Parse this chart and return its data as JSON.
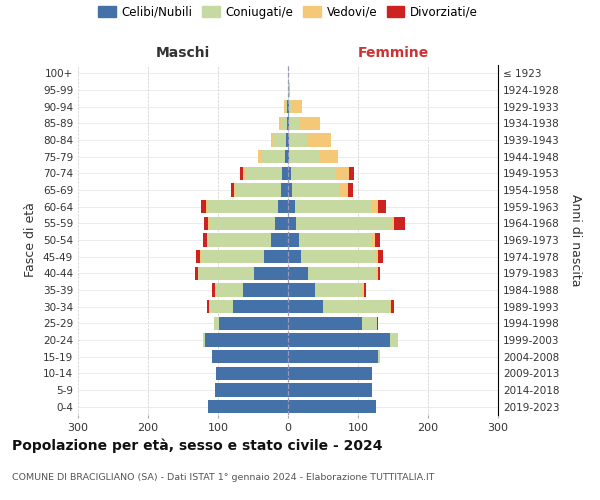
{
  "age_groups": [
    "0-4",
    "5-9",
    "10-14",
    "15-19",
    "20-24",
    "25-29",
    "30-34",
    "35-39",
    "40-44",
    "45-49",
    "50-54",
    "55-59",
    "60-64",
    "65-69",
    "70-74",
    "75-79",
    "80-84",
    "85-89",
    "90-94",
    "95-99",
    "100+"
  ],
  "birth_years": [
    "2019-2023",
    "2014-2018",
    "2009-2013",
    "2004-2008",
    "1999-2003",
    "1994-1998",
    "1989-1993",
    "1984-1988",
    "1979-1983",
    "1974-1978",
    "1969-1973",
    "1964-1968",
    "1959-1963",
    "1954-1958",
    "1949-1953",
    "1944-1948",
    "1939-1943",
    "1934-1938",
    "1929-1933",
    "1924-1928",
    "≤ 1923"
  ],
  "maschi_celibi": [
    115,
    105,
    103,
    108,
    118,
    98,
    78,
    65,
    48,
    35,
    25,
    18,
    15,
    10,
    8,
    5,
    3,
    2,
    2,
    0,
    0
  ],
  "maschi_coniugati": [
    0,
    0,
    0,
    0,
    3,
    8,
    35,
    40,
    80,
    90,
    90,
    95,
    100,
    65,
    52,
    32,
    18,
    8,
    2,
    0,
    0
  ],
  "maschi_vedovi": [
    0,
    0,
    0,
    0,
    0,
    0,
    0,
    0,
    1,
    1,
    1,
    1,
    2,
    2,
    4,
    6,
    4,
    3,
    2,
    0,
    0
  ],
  "maschi_divorziati": [
    0,
    0,
    0,
    0,
    0,
    0,
    2,
    4,
    4,
    6,
    6,
    6,
    8,
    5,
    4,
    0,
    0,
    0,
    0,
    0,
    0
  ],
  "femmine_nubili": [
    125,
    120,
    120,
    128,
    145,
    105,
    50,
    38,
    28,
    18,
    15,
    12,
    10,
    6,
    4,
    2,
    1,
    1,
    1,
    0,
    0
  ],
  "femmine_coniugate": [
    0,
    0,
    0,
    3,
    12,
    22,
    95,
    68,
    98,
    108,
    105,
    135,
    110,
    68,
    65,
    42,
    28,
    15,
    4,
    1,
    0
  ],
  "femmine_vedove": [
    0,
    0,
    0,
    0,
    0,
    0,
    2,
    2,
    2,
    3,
    4,
    5,
    8,
    12,
    18,
    28,
    32,
    30,
    15,
    2,
    0
  ],
  "femmine_divorziate": [
    0,
    0,
    0,
    0,
    0,
    2,
    4,
    4,
    4,
    7,
    7,
    15,
    12,
    7,
    7,
    0,
    0,
    0,
    0,
    0,
    0
  ],
  "color_celibi": "#4472a8",
  "color_coniugati": "#c5d9a0",
  "color_vedovi": "#f5c878",
  "color_divorziati": "#cc2222",
  "title": "Popolazione per età, sesso e stato civile - 2024",
  "subtitle": "COMUNE DI BRACIGLIANO (SA) - Dati ISTAT 1° gennaio 2024 - Elaborazione TUTTITALIA.IT",
  "legend_labels": [
    "Celibi/Nubili",
    "Coniugati/e",
    "Vedovi/e",
    "Divorziati/e"
  ],
  "xlim": 300
}
